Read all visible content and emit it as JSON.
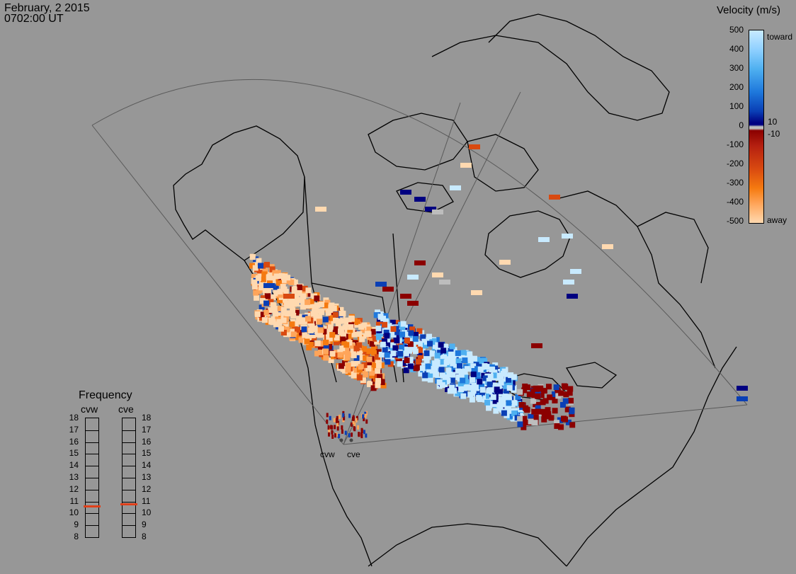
{
  "header": {
    "date": "February, 2 2015",
    "time": "0702:00 UT"
  },
  "legend": {
    "title": "Velocity (m/s)",
    "ticks": [
      "500",
      "400",
      "300",
      "200",
      "100",
      "0",
      "-100",
      "-200",
      "-300",
      "-400",
      "-500"
    ],
    "toward_label": "toward",
    "away_label": "away",
    "near_zero_pos": "10",
    "near_zero_neg": "-10",
    "colors": [
      "#ffd9b0",
      "#ffa55a",
      "#f57a10",
      "#d94a10",
      "#b52010",
      "#8b0000",
      "#bdbdbd",
      "#000080",
      "#0a3fb5",
      "#1e78dc",
      "#4fb0f0",
      "#c8eaff"
    ]
  },
  "frequency": {
    "title": "Frequency",
    "columns": [
      {
        "label": "cvw",
        "value": 10.6
      },
      {
        "label": "cve",
        "value": 10.8
      }
    ],
    "ticks": [
      "18",
      "17",
      "16",
      "15",
      "14",
      "13",
      "12",
      "11",
      "10",
      "9",
      "8"
    ],
    "marker_color": "#e0401a"
  },
  "stations": [
    {
      "name": "cvw"
    },
    {
      "name": "cve"
    }
  ]
}
